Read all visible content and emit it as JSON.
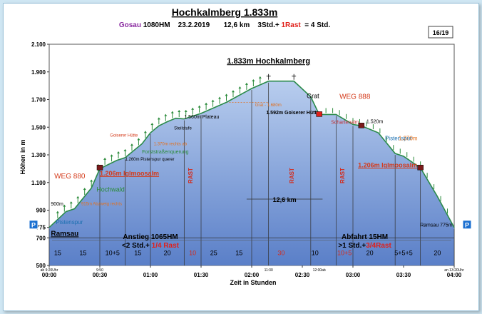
{
  "page_badge": "16/19",
  "chart_data": {
    "type": "area",
    "title": "Hochkalmberg 1.833m",
    "subtitle": {
      "place": "Gosau",
      "details": "1080HM    23.2.2019       12,6 km    3Std.+",
      "rest": "1Rast",
      "total": " = 4 Std."
    },
    "xlabel": "Zeit in Stunden",
    "ylabel": "Höhen in m",
    "xlim": [
      0,
      240
    ],
    "ylim": [
      500,
      2100
    ],
    "yticks": [
      {
        "v": 2100,
        "label": "2.100"
      },
      {
        "v": 1900,
        "label": "1.900"
      },
      {
        "v": 1700,
        "label": "1.700"
      },
      {
        "v": 1500,
        "label": "1.500"
      },
      {
        "v": 1300,
        "label": "1.300"
      },
      {
        "v": 1100,
        "label": "1.100"
      },
      {
        "v": 900,
        "label": "900"
      },
      {
        "v": 775,
        "label": "775"
      },
      {
        "v": 700,
        "label": "700"
      },
      {
        "v": 500,
        "label": "500"
      }
    ],
    "xticks": [
      {
        "v": 0,
        "label": "00:00"
      },
      {
        "v": 30,
        "label": "00:30"
      },
      {
        "v": 60,
        "label": "01:00"
      },
      {
        "v": 90,
        "label": "01:30"
      },
      {
        "v": 120,
        "label": "02:00"
      },
      {
        "v": 150,
        "label": "02:30"
      },
      {
        "v": 180,
        "label": "03:00"
      },
      {
        "v": 210,
        "label": "03:30"
      },
      {
        "v": 240,
        "label": "04:00"
      }
    ],
    "x": [
      0,
      10,
      15,
      25,
      30,
      40,
      45,
      55,
      60,
      65,
      70,
      75,
      80,
      90,
      105,
      120,
      130,
      145,
      155,
      160,
      170,
      180,
      185,
      195,
      205,
      210,
      220,
      230,
      240
    ],
    "y": [
      775,
      890,
      910,
      1060,
      1200,
      1260,
      1280,
      1380,
      1460,
      1510,
      1540,
      1565,
      1560,
      1600,
      1680,
      1780,
      1833,
      1833,
      1720,
      1592,
      1592,
      1520,
      1510,
      1460,
      1310,
      1290,
      1206,
      1000,
      775
    ],
    "segments": [
      {
        "x0": 0,
        "x1": 10,
        "label": "15"
      },
      {
        "x0": 10,
        "x1": 30,
        "label": "15"
      },
      {
        "x0": 30,
        "x1": 45,
        "label": "10+5"
      },
      {
        "x0": 45,
        "x1": 60,
        "label": "15"
      },
      {
        "x0": 60,
        "x1": 80,
        "label": "20"
      },
      {
        "x0": 80,
        "x1": 90,
        "label": "10",
        "rest": true
      },
      {
        "x0": 90,
        "x1": 105,
        "label": "25"
      },
      {
        "x0": 105,
        "x1": 120,
        "label": "15"
      },
      {
        "x0": 130,
        "x1": 145,
        "label": "30",
        "rest": true
      },
      {
        "x0": 155,
        "x1": 160,
        "label": "10"
      },
      {
        "x0": 170,
        "x1": 180,
        "label": "10+5",
        "rest": true
      },
      {
        "x0": 180,
        "x1": 200,
        "label": "20"
      },
      {
        "x0": 200,
        "x1": 220,
        "label": "5+5+5"
      },
      {
        "x0": 220,
        "x1": 240,
        "label": "20"
      }
    ],
    "dividers": [
      0,
      30,
      45,
      60,
      80,
      90,
      120,
      130,
      155,
      170,
      180,
      205,
      220,
      240
    ],
    "rast_labels": [
      {
        "x": 85,
        "label": "RAST"
      },
      {
        "x": 145,
        "label": "RAST"
      },
      {
        "x": 175,
        "label": "RAST"
      }
    ],
    "time_marks": [
      {
        "x": 0,
        "label": "ab 9:20Uhr"
      },
      {
        "x": 30,
        "label": "9:50"
      },
      {
        "x": 130,
        "label": "11:30"
      },
      {
        "x": 160,
        "label": "12:00ab"
      },
      {
        "x": 240,
        "label": "an 13:20Uhr"
      }
    ],
    "distance": {
      "label": "12,6 km",
      "x0": 117,
      "x1": 162,
      "y": 980
    },
    "annotations": [
      {
        "id": "summit-title",
        "x": 130,
        "y": 1960,
        "label": "1.833m Hochkalmberg",
        "color": "#000000",
        "size": 11,
        "weight": "bold",
        "underline": true,
        "anchor": "middle"
      },
      {
        "id": "grat-top",
        "x": 160,
        "y": 1710,
        "label": "Grat",
        "color": "#000000",
        "size": 9,
        "anchor": "end"
      },
      {
        "id": "weg888",
        "x": 172,
        "y": 1705,
        "label": "WEG 888",
        "color": "#d43a1a",
        "size": 10
      },
      {
        "id": "grat-info",
        "x": 122,
        "y": 1650,
        "label": "Grat - 1.680m",
        "color": "#e07020",
        "size": 6
      },
      {
        "id": "goiserer-huette",
        "x": 160,
        "y": 1593,
        "label": "1.592m Goiserer Hütte",
        "color": "#000000",
        "size": 7,
        "weight": "bold",
        "anchor": "end"
      },
      {
        "id": "schartenalm",
        "x": 167,
        "y": 1525,
        "label": "Schartenalm",
        "color": "#c03030",
        "size": 7
      },
      {
        "id": "hoehe-1520",
        "x": 188,
        "y": 1530,
        "label": "1.520m",
        "color": "#000000",
        "size": 7
      },
      {
        "id": "pistenspur-right",
        "x": 199,
        "y": 1406,
        "label": "Pistenspur",
        "color": "#1a6fb0",
        "size": 8
      },
      {
        "id": "hoehe-1370",
        "x": 207,
        "y": 1405,
        "label": "1.370m",
        "color": "#e07020",
        "size": 8
      },
      {
        "id": "iglmoos-right",
        "x": 183,
        "y": 1210,
        "label": "1.206m Iglmoosalm",
        "color": "#d43a1a",
        "size": 9,
        "weight": "bold",
        "underline": true
      },
      {
        "id": "ramsau-right",
        "x": 239,
        "y": 782,
        "label": "Ramsau 775m",
        "color": "#000000",
        "size": 7,
        "anchor": "end"
      },
      {
        "id": "plateau",
        "x": 80,
        "y": 1562,
        "label": "1.560m Plateau",
        "color": "#000000",
        "size": 7
      },
      {
        "id": "steilstufe",
        "x": 74,
        "y": 1482,
        "label": "Steilstufe",
        "color": "#000000",
        "size": 6
      },
      {
        "id": "goiserer-sign",
        "x": 36,
        "y": 1432,
        "label": "Goiserer Hütte",
        "color": "#d43a1a",
        "size": 6
      },
      {
        "id": "hoehe-1370-left",
        "x": 62,
        "y": 1370,
        "label": "1.370m rechts ab",
        "color": "#e07020",
        "size": 6
      },
      {
        "id": "forststrasse",
        "x": 55,
        "y": 1310,
        "label": "Forststraßenquerung",
        "color": "#2a8a3a",
        "size": 7
      },
      {
        "id": "pistenspur-querer",
        "x": 45,
        "y": 1260,
        "label": "1.260m Pistenspur querer",
        "color": "#000000",
        "size": 6
      },
      {
        "id": "iglmoos-left",
        "x": 30,
        "y": 1150,
        "label": "1.206m Iglmoosalm",
        "color": "#d43a1a",
        "size": 9,
        "weight": "bold",
        "underline": true
      },
      {
        "id": "weg880",
        "x": 3,
        "y": 1130,
        "label": "WEG 880",
        "color": "#d43a1a",
        "size": 10
      },
      {
        "id": "hochwald",
        "x": 28,
        "y": 1035,
        "label": "Hochwald",
        "color": "#2a8a3a",
        "size": 9
      },
      {
        "id": "hoehe-900",
        "x": 1,
        "y": 933,
        "label": "900m",
        "color": "#000000",
        "size": 7
      },
      {
        "id": "abzweig",
        "x": 19,
        "y": 935,
        "label": "915m Abzweig rechts",
        "color": "#e07020",
        "size": 6
      },
      {
        "id": "pistenspur-left",
        "x": 4,
        "y": 800,
        "label": "Pistenspur",
        "color": "#1a6fb0",
        "size": 8
      },
      {
        "id": "ramsau-left",
        "x": 1,
        "y": 715,
        "label": "Ramsau",
        "color": "#000000",
        "size": 10,
        "weight": "bold",
        "underline": true
      },
      {
        "id": "anstieg",
        "x": 60,
        "y": 690,
        "label": "Anstieg 1065HM",
        "color": "#000000",
        "size": 10,
        "weight": "bold",
        "anchor": "middle"
      },
      {
        "id": "abfahrt",
        "x": 187,
        "y": 690,
        "label": "Abfahrt 15HM",
        "color": "#000000",
        "size": 10,
        "weight": "bold",
        "anchor": "middle"
      }
    ],
    "durations": [
      {
        "x": 60,
        "y": 630,
        "prefix": "<2 Std.+ ",
        "rest": "1/4 Rast"
      },
      {
        "x": 187,
        "y": 630,
        "prefix": ">1 Std.+",
        "rest": "3/4Rast"
      }
    ],
    "markers": [
      {
        "x": 30,
        "y": 1206,
        "type": "hut"
      },
      {
        "x": 160,
        "y": 1592,
        "type": "hut-red"
      },
      {
        "x": 185,
        "y": 1510,
        "type": "hut"
      },
      {
        "x": 220,
        "y": 1206,
        "type": "hut"
      }
    ],
    "parking": [
      {
        "x": 0,
        "y": 775,
        "label": "P"
      },
      {
        "x": 240,
        "y": 775,
        "label": "P"
      }
    ],
    "grid": false
  }
}
